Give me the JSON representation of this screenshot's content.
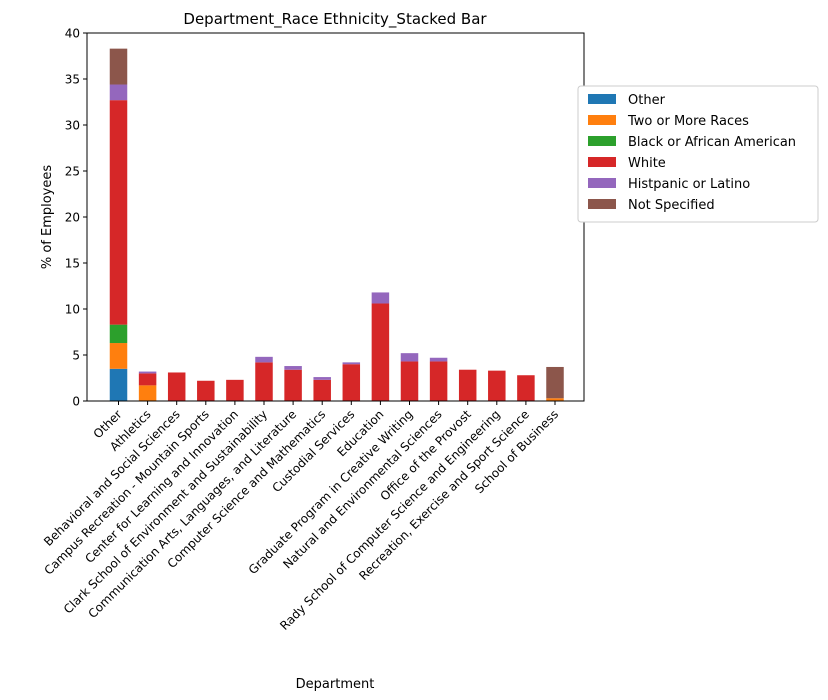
{
  "chart_data": {
    "type": "bar",
    "stacked": true,
    "title": "Department_Race Ethnicity_Stacked Bar",
    "xlabel": "Department",
    "ylabel": "% of Employees",
    "ylim": [
      0,
      40
    ],
    "yticks": [
      0,
      5,
      10,
      15,
      20,
      25,
      30,
      35,
      40
    ],
    "grid": false,
    "legend_position": "outside-right",
    "categories": [
      "Other",
      "Athletics",
      "Behavioral and Social Sciences",
      "Campus Recreation - Mountain Sports",
      "Center for Learning and Innovation",
      "Clark School of Environment and Sustainability",
      "Communication Arts, Languages, and Literature",
      "Computer Science and Mathematics",
      "Custodial Services",
      "Education",
      "Graduate Program in Creative Writing",
      "Natural and Environmental Sciences",
      "Office of the Provost",
      "Rady School of Computer Science and Engineering",
      "Recreation, Exercise and Sport Science",
      "School of Business"
    ],
    "series": [
      {
        "name": "Other",
        "color": "#1f77b4",
        "values": [
          3.5,
          0,
          0,
          0,
          0,
          0,
          0,
          0,
          0,
          0,
          0,
          0,
          0,
          0,
          0,
          0
        ]
      },
      {
        "name": "Two or More Races",
        "color": "#ff7f0e",
        "values": [
          2.8,
          1.7,
          0,
          0,
          0,
          0,
          0,
          0,
          0,
          0,
          0,
          0,
          0,
          0,
          0,
          0.3
        ]
      },
      {
        "name": "Black or African American",
        "color": "#2ca02c",
        "values": [
          2.0,
          0,
          0,
          0,
          0,
          0,
          0,
          0,
          0,
          0,
          0,
          0,
          0,
          0,
          0,
          0
        ]
      },
      {
        "name": "White",
        "color": "#d62728",
        "values": [
          24.4,
          1.3,
          3.1,
          2.2,
          2.3,
          4.2,
          3.4,
          2.3,
          4.0,
          10.6,
          4.3,
          4.3,
          3.4,
          3.3,
          2.8,
          0
        ]
      },
      {
        "name": "Histpanic or Latino",
        "color": "#9467bd",
        "values": [
          1.7,
          0.2,
          0,
          0,
          0,
          0.6,
          0.4,
          0.3,
          0.2,
          1.2,
          0.9,
          0.4,
          0,
          0,
          0,
          0
        ]
      },
      {
        "name": "Not Specified",
        "color": "#8c564b",
        "values": [
          3.9,
          0,
          0,
          0,
          0,
          0,
          0,
          0,
          0,
          0,
          0,
          0,
          0,
          0,
          0,
          3.4
        ]
      }
    ]
  }
}
